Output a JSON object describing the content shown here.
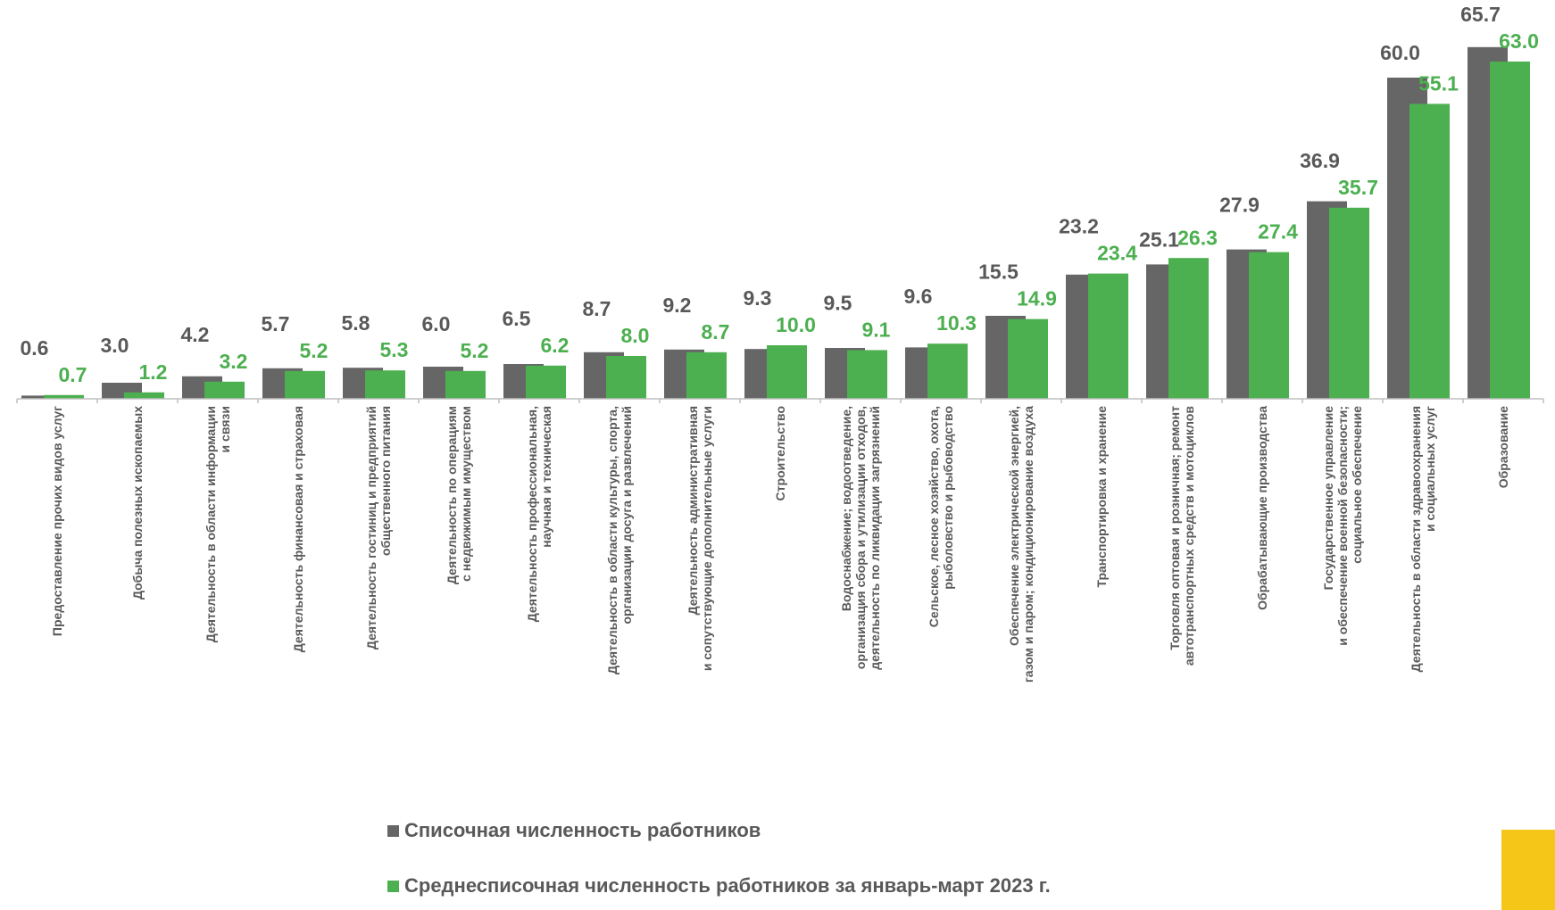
{
  "chart_data": {
    "type": "bar",
    "categories": [
      [
        "Предоставление прочих видов услуг"
      ],
      [
        "Добыча полезных ископаемых"
      ],
      [
        "Деятельность в области информации",
        "и связи"
      ],
      [
        "Деятельность финансовая и страховая"
      ],
      [
        "Деятельность гостиниц и предприятий",
        "общественного питания"
      ],
      [
        "Деятельность по операциям",
        "с недвижимым имуществом"
      ],
      [
        "Деятельность профессиональная,",
        "научная и техническая"
      ],
      [
        "Деятельность в области культуры, спорта,",
        "организации досуга и развлечений"
      ],
      [
        "Деятельность административная",
        "и сопутствующие дополнительные услуги"
      ],
      [
        "Строительство"
      ],
      [
        "Водоснабжение; водоотведение,",
        "организация сбора и утилизации отходов,",
        "деятельность по ликвидации загрязнений"
      ],
      [
        "Сельское, лесное хозяйство, охота,",
        "рыболовство и рыбоводство"
      ],
      [
        "Обеспечение электрической энергией,",
        "газом и паром; кондиционирование воздуха"
      ],
      [
        "Транспортировка и хранение"
      ],
      [
        "Торговля оптовая и розничная; ремонт",
        "автотранспортных средств и мотоциклов"
      ],
      [
        "Обрабатывающие производства"
      ],
      [
        "Государственное управление",
        "и обеспечение военной безопасности;",
        "социальное обеспечение"
      ],
      [
        "Деятельность в области здравоохранения",
        "и социальных услуг"
      ],
      [
        "Образование"
      ]
    ],
    "series": [
      {
        "name": "Списочная численность работников",
        "color": "#666666",
        "labelColor": "#595959",
        "values": [
          0.6,
          3.0,
          4.2,
          5.7,
          5.8,
          6.0,
          6.5,
          8.7,
          9.2,
          9.3,
          9.5,
          9.6,
          15.5,
          23.2,
          25.1,
          27.9,
          36.9,
          60.0,
          65.7
        ],
        "labels": [
          "0.6",
          "3.0",
          "4.2",
          "5.7",
          "5.8",
          "6.0",
          "6.5",
          "8.7",
          "9.2",
          "9.3",
          "9.5",
          "9.6",
          "15.5",
          "23.2",
          "25.1",
          "27.9",
          "36.9",
          "60.0",
          "65.7"
        ]
      },
      {
        "name": "Среднесписочная численность работников за январь-март 2023 г.",
        "color": "#4CAF50",
        "labelColor": "#4CAF50",
        "values": [
          0.7,
          1.2,
          3.2,
          5.2,
          5.3,
          5.2,
          6.2,
          8.0,
          8.7,
          10.0,
          9.1,
          10.3,
          14.9,
          23.4,
          26.3,
          27.4,
          35.7,
          55.1,
          63.0
        ],
        "labels": [
          "0.7",
          "1.2",
          "3.2",
          "5.2",
          "5.3",
          "5.2",
          "6.2",
          "8.0",
          "8.7",
          "10.0",
          "9.1",
          "10.3",
          "14.9",
          "23.4",
          "26.3",
          "27.4",
          "35.7",
          "55.1",
          "63.0"
        ]
      }
    ],
    "ylim": [
      0,
      66
    ],
    "grid": false,
    "legend_position": "bottom"
  },
  "legend": {
    "items": [
      {
        "label": "Списочная численность работников",
        "color": "#666666"
      },
      {
        "label": "Среднесписочная численность работников за январь-март 2023 г.",
        "color": "#4CAF50"
      }
    ]
  },
  "badge_color": "#F5C518"
}
